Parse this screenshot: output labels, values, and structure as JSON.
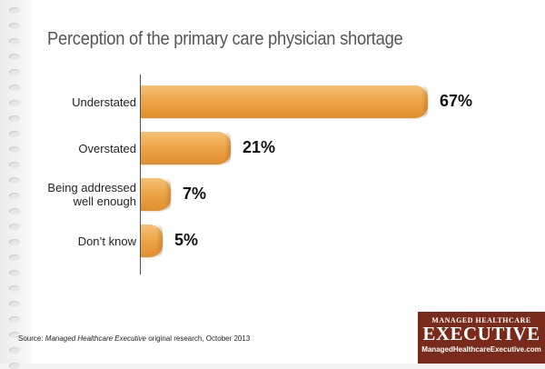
{
  "chart_data": {
    "type": "bar",
    "orientation": "horizontal",
    "title": "Perception of the primary care physician shortage",
    "categories": [
      "Understated",
      "Overstated",
      "Being addressed well enough",
      "Don't know"
    ],
    "category_lines": [
      [
        "Understated"
      ],
      [
        "Overstated"
      ],
      [
        "Being addressed",
        "well enough"
      ],
      [
        "Don’t know"
      ]
    ],
    "values": [
      67,
      21,
      7,
      5
    ],
    "value_labels": [
      "67%",
      "21%",
      "7%",
      "5%"
    ],
    "xlim": [
      0,
      70
    ],
    "grid": false,
    "legend": "none",
    "bar_color": "#eea64a"
  },
  "source": {
    "prefix": "Source: ",
    "publication": "Managed Healthcare Executive",
    "suffix": " original research, October 2013"
  },
  "logo": {
    "line1": "MANAGED HEALTHCARE",
    "line2": "EXECUTIVE",
    "line3": "ManagedHealthcareExecutive.com",
    "color": "#7a2a1a"
  }
}
